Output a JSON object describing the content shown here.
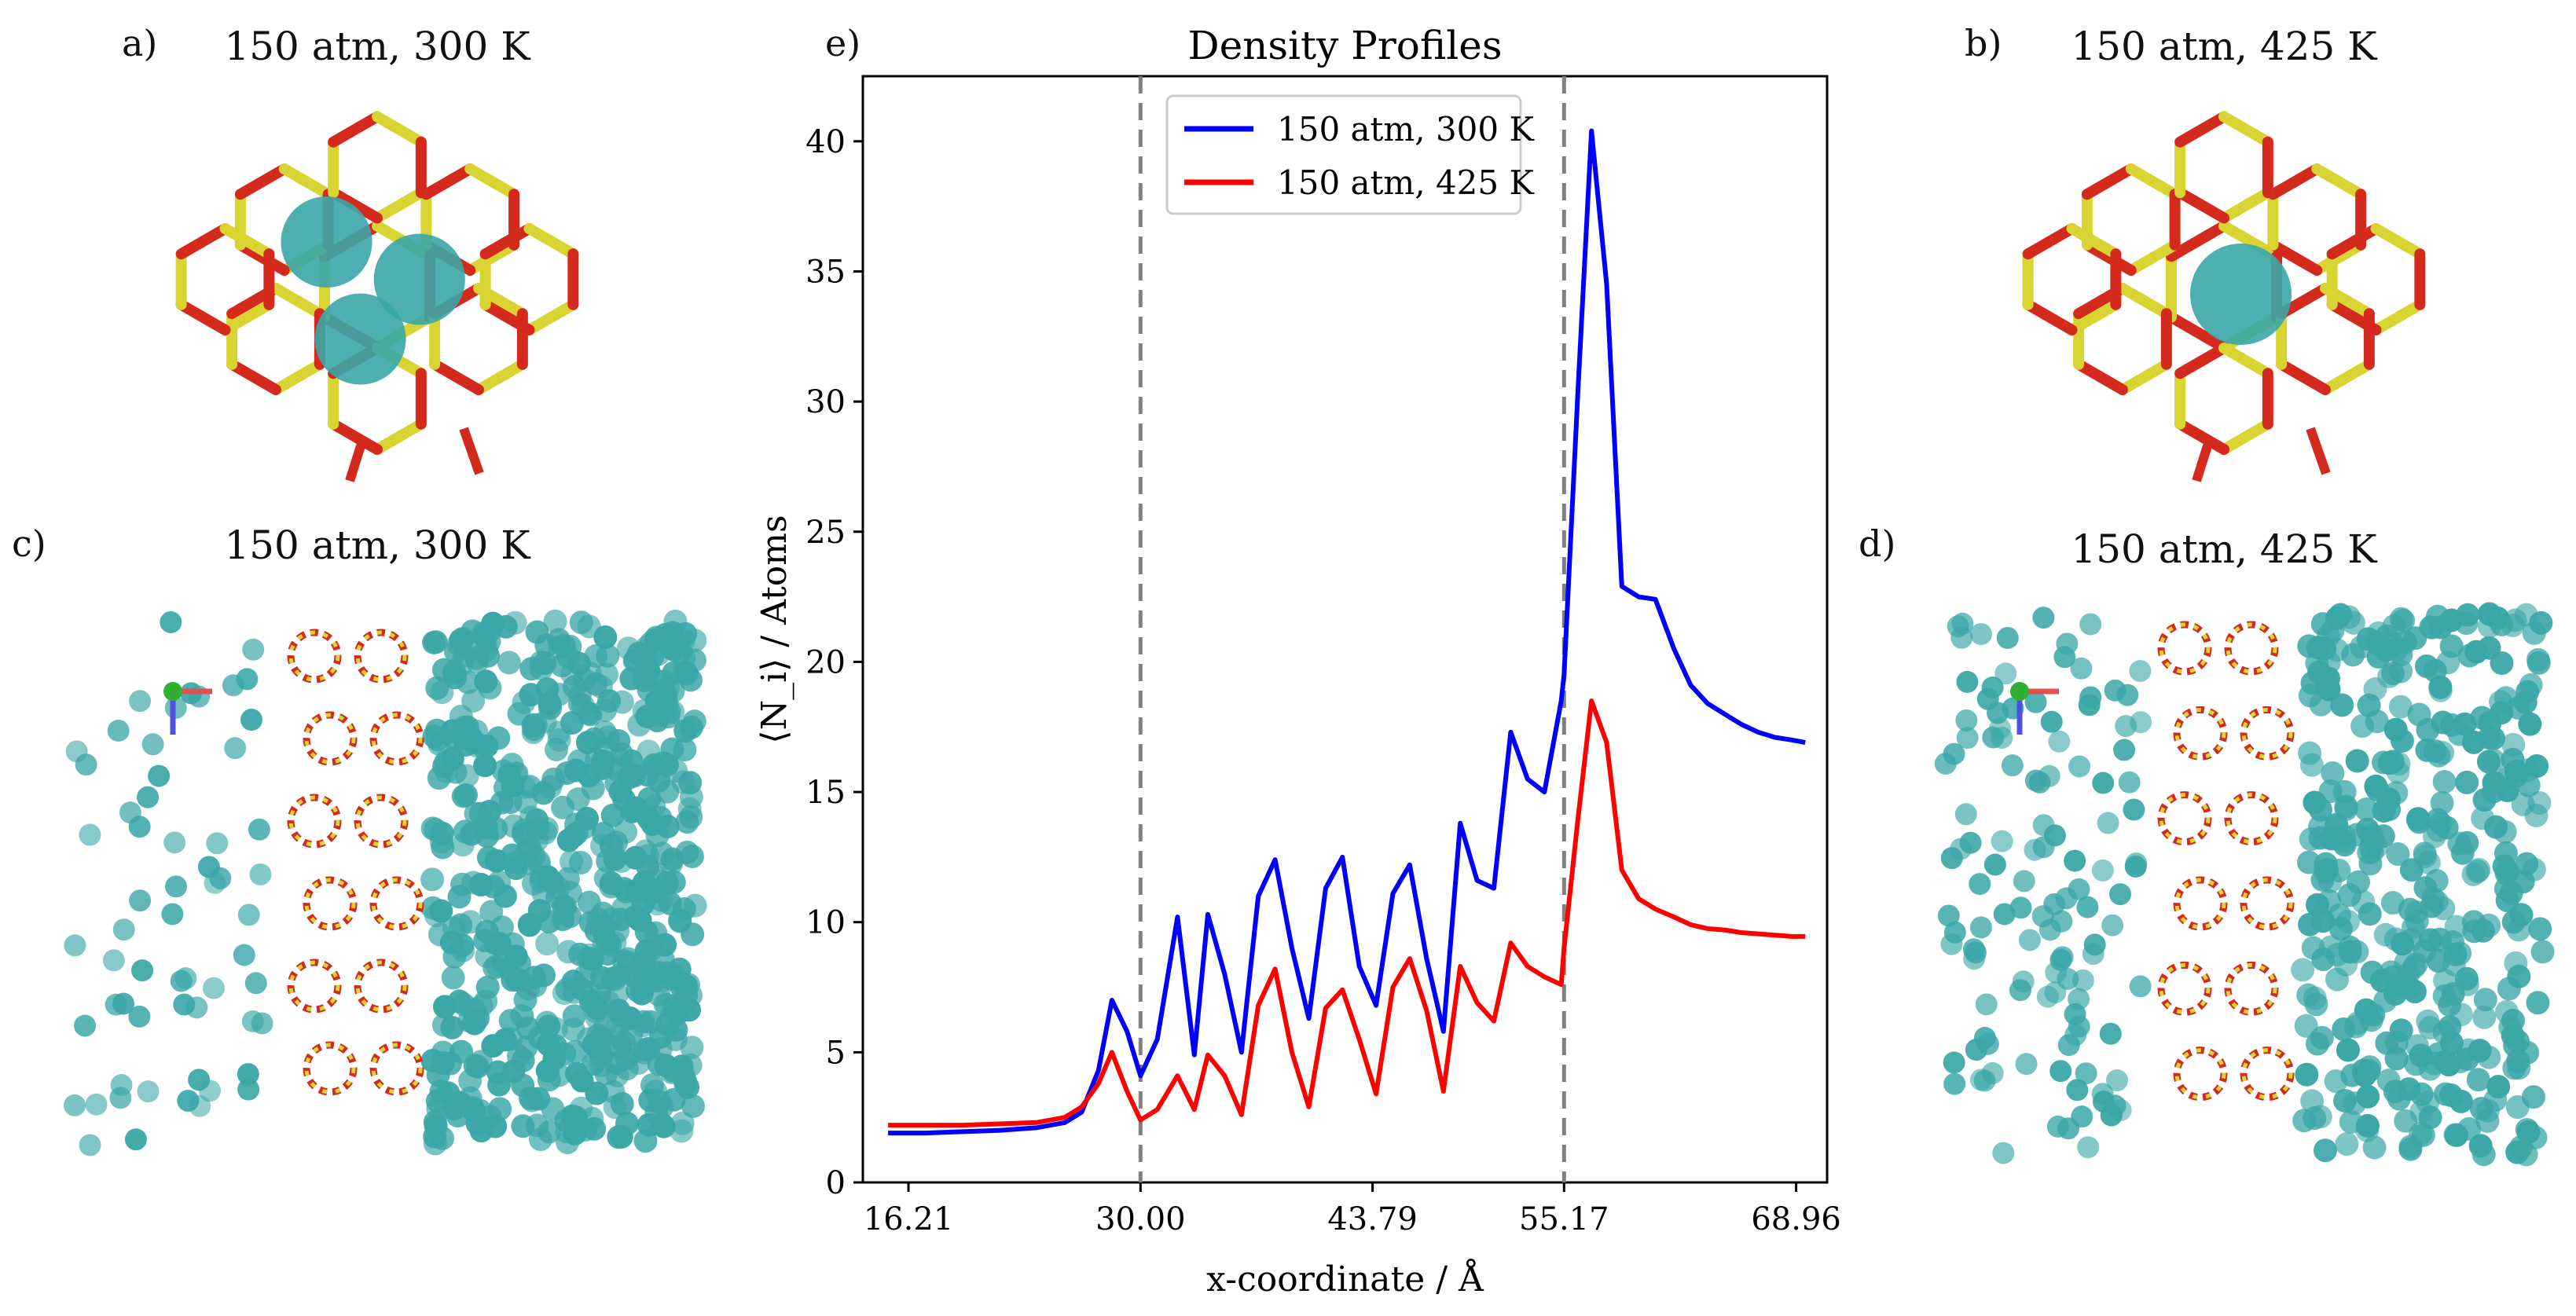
{
  "panels": {
    "a": {
      "label": "a)",
      "title": "150 atm, 300 K"
    },
    "b": {
      "label": "b)",
      "title": "150 atm, 425 K"
    },
    "c": {
      "label": "c)",
      "title": "150 atm, 300 K"
    },
    "d": {
      "label": "d)",
      "title": "150 atm, 425 K"
    },
    "e": {
      "label": "e)"
    }
  },
  "colors": {
    "framework_red": "#d42a1e",
    "framework_yellow": "#d8d432",
    "atom_teal": "#3aa6a6",
    "series_blue": "#0000ff",
    "series_red": "#ff0000",
    "guide_gray": "#808080"
  },
  "chart_data": {
    "type": "line",
    "title": "Density Profiles",
    "xlabel": "x-coordinate / Å",
    "ylabel": "⟨N_i⟩ / Atoms",
    "xlim": [
      13.5,
      70.8
    ],
    "ylim": [
      0,
      42.5
    ],
    "xticks": [
      16.21,
      30.0,
      43.79,
      55.17,
      68.96
    ],
    "xtick_labels": [
      "16.21",
      "30.00",
      "43.79",
      "55.17",
      "68.96"
    ],
    "yticks": [
      0,
      5,
      10,
      15,
      20,
      25,
      30,
      35,
      40
    ],
    "ytick_labels": [
      "0",
      "5",
      "10",
      "15",
      "20",
      "25",
      "30",
      "35",
      "40"
    ],
    "vlines": [
      30.0,
      55.17
    ],
    "legend_position": "top-left",
    "series": [
      {
        "name": "150 atm, 300 K",
        "color": "#0000ff",
        "x": [
          15.0,
          17.2,
          19.4,
          21.6,
          23.8,
          25.5,
          26.5,
          27.5,
          28.3,
          29.2,
          30.0,
          31.0,
          32.2,
          33.2,
          34.0,
          35.0,
          36.0,
          37.0,
          38.0,
          39.0,
          40.0,
          41.0,
          42.0,
          43.0,
          44.0,
          45.0,
          46.0,
          47.0,
          48.0,
          49.0,
          50.0,
          51.0,
          52.0,
          53.0,
          54.0,
          55.0,
          55.17,
          56.0,
          56.8,
          57.7,
          58.6,
          59.6,
          60.6,
          61.7,
          62.7,
          63.7,
          64.7,
          65.7,
          66.7,
          67.7,
          68.7,
          69.5
        ],
        "values": [
          1.9,
          1.9,
          1.95,
          2.0,
          2.1,
          2.3,
          2.7,
          4.3,
          7.0,
          5.8,
          4.1,
          5.5,
          10.2,
          4.9,
          10.3,
          8.0,
          5.0,
          11.0,
          12.4,
          9.0,
          6.3,
          11.3,
          12.5,
          8.3,
          6.8,
          11.1,
          12.2,
          8.6,
          5.8,
          13.8,
          11.6,
          11.3,
          17.3,
          15.5,
          15.0,
          18.5,
          19.5,
          30.5,
          40.4,
          34.5,
          22.9,
          22.5,
          22.4,
          20.5,
          19.1,
          18.4,
          18.0,
          17.6,
          17.3,
          17.1,
          17.0,
          16.9
        ]
      },
      {
        "name": "150 atm, 425 K",
        "color": "#ff0000",
        "x": [
          15.0,
          17.2,
          19.4,
          21.6,
          23.8,
          25.5,
          26.5,
          27.5,
          28.3,
          29.2,
          30.0,
          31.0,
          32.2,
          33.2,
          34.0,
          35.0,
          36.0,
          37.0,
          38.0,
          39.0,
          40.0,
          41.0,
          42.0,
          43.0,
          44.0,
          45.0,
          46.0,
          47.0,
          48.0,
          49.0,
          50.0,
          51.0,
          52.0,
          53.0,
          54.0,
          55.0,
          55.17,
          56.0,
          56.8,
          57.7,
          58.6,
          59.6,
          60.6,
          61.7,
          62.7,
          63.7,
          64.7,
          65.7,
          66.7,
          67.7,
          68.7,
          69.5
        ],
        "values": [
          2.2,
          2.2,
          2.2,
          2.25,
          2.3,
          2.5,
          2.9,
          3.8,
          5.0,
          3.5,
          2.4,
          2.8,
          4.1,
          2.8,
          4.9,
          4.1,
          2.6,
          6.8,
          8.2,
          5.0,
          2.9,
          6.7,
          7.4,
          5.5,
          3.4,
          7.5,
          8.6,
          6.6,
          3.5,
          8.3,
          6.9,
          6.2,
          9.2,
          8.3,
          7.9,
          7.6,
          9.0,
          14.0,
          18.5,
          16.9,
          12.0,
          10.9,
          10.5,
          10.2,
          9.9,
          9.75,
          9.7,
          9.6,
          9.55,
          9.5,
          9.45,
          9.45
        ]
      }
    ]
  }
}
